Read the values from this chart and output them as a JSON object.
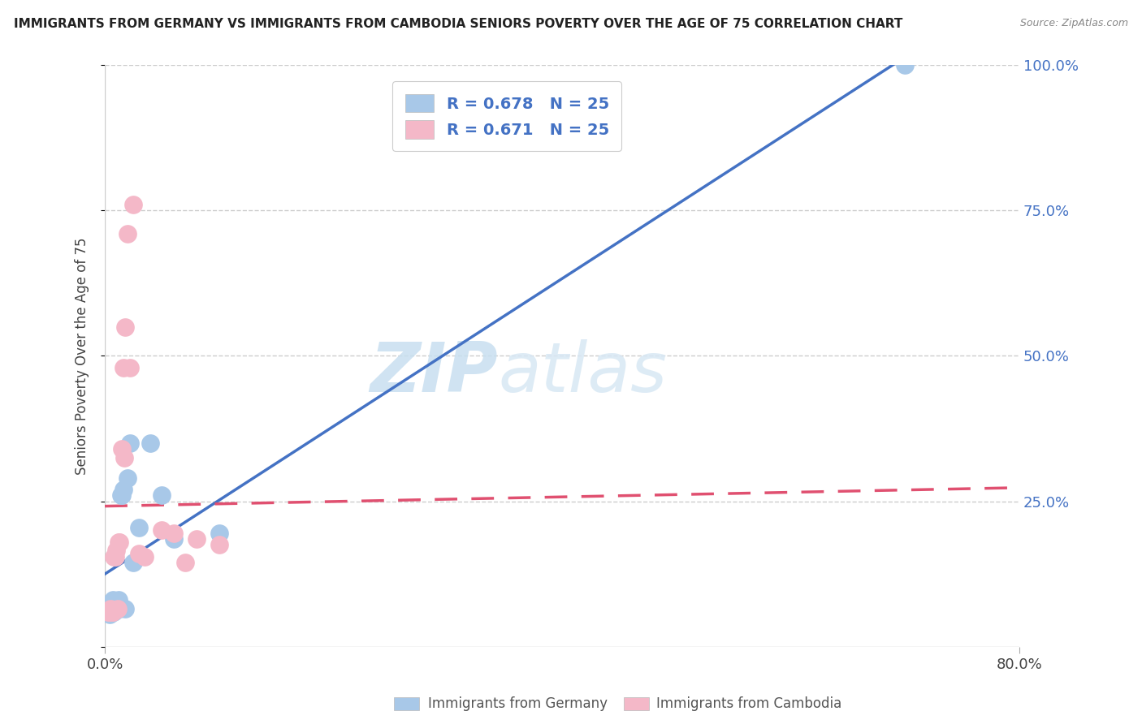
{
  "title": "IMMIGRANTS FROM GERMANY VS IMMIGRANTS FROM CAMBODIA SENIORS POVERTY OVER THE AGE OF 75 CORRELATION CHART",
  "source": "Source: ZipAtlas.com",
  "ylabel": "Seniors Poverty Over the Age of 75",
  "germany_label": "Immigrants from Germany",
  "cambodia_label": "Immigrants from Cambodia",
  "germany_R": "0.678",
  "cambodia_R": "0.671",
  "germany_N": "25",
  "cambodia_N": "25",
  "xlim": [
    0.0,
    0.8
  ],
  "ylim": [
    0.0,
    1.0
  ],
  "xtick_vals": [
    0.0,
    0.8
  ],
  "xtick_labels": [
    "0.0%",
    "80.0%"
  ],
  "ytick_vals": [
    0.0,
    0.25,
    0.5,
    0.75,
    1.0
  ],
  "ytick_labels": [
    "",
    "25.0%",
    "50.0%",
    "75.0%",
    "100.0%"
  ],
  "germany_color": "#a8c8e8",
  "cambodia_color": "#f4b8c8",
  "germany_line_color": "#4472c4",
  "cambodia_line_color": "#e05070",
  "watermark_zip": "ZIP",
  "watermark_atlas": "atlas",
  "germany_x": [
    0.004,
    0.005,
    0.005,
    0.006,
    0.007,
    0.007,
    0.008,
    0.009,
    0.01,
    0.011,
    0.012,
    0.013,
    0.014,
    0.015,
    0.016,
    0.018,
    0.02,
    0.022,
    0.025,
    0.03,
    0.04,
    0.05,
    0.06,
    0.1,
    0.7
  ],
  "germany_y": [
    0.055,
    0.06,
    0.075,
    0.07,
    0.065,
    0.08,
    0.06,
    0.07,
    0.065,
    0.075,
    0.08,
    0.065,
    0.26,
    0.26,
    0.27,
    0.065,
    0.29,
    0.35,
    0.145,
    0.205,
    0.35,
    0.26,
    0.185,
    0.195,
    1.0
  ],
  "cambodia_x": [
    0.003,
    0.004,
    0.005,
    0.006,
    0.007,
    0.008,
    0.009,
    0.01,
    0.011,
    0.012,
    0.013,
    0.015,
    0.016,
    0.017,
    0.018,
    0.02,
    0.022,
    0.025,
    0.03,
    0.035,
    0.05,
    0.06,
    0.07,
    0.08,
    0.1
  ],
  "cambodia_y": [
    0.06,
    0.06,
    0.065,
    0.06,
    0.06,
    0.155,
    0.155,
    0.165,
    0.065,
    0.18,
    0.18,
    0.34,
    0.48,
    0.325,
    0.55,
    0.71,
    0.48,
    0.76,
    0.16,
    0.155,
    0.2,
    0.195,
    0.145,
    0.185,
    0.175
  ]
}
